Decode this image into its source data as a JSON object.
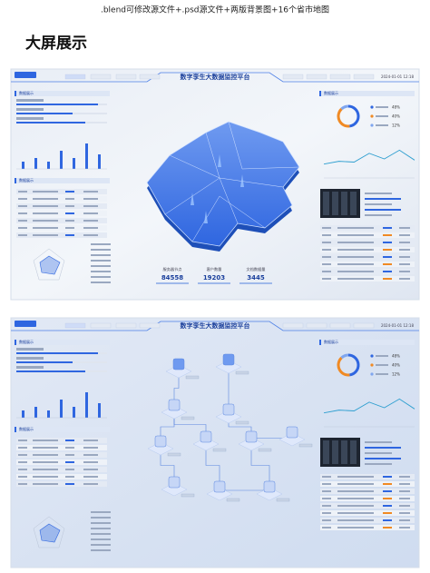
{
  "header": {
    "caption": ".blend可修改源文件+.psd源文件+两版背景图+16个省市地图",
    "title": "大屏展示"
  },
  "screens": [
    {
      "title": "数字孪生大数据监控平台",
      "date": "2024-01-01 12:18",
      "panel_left": "数据展示",
      "panel_left2": "数据展示",
      "panel_right": "数据展示",
      "progress": [
        90,
        62,
        76
      ],
      "bars": [
        2,
        3,
        2,
        5,
        3,
        7,
        4
      ],
      "donut": {
        "values": [
          48,
          40,
          12
        ],
        "value_labels": [
          "48%",
          "40%",
          "12%"
        ]
      },
      "line": [
        35,
        42,
        40,
        62,
        48,
        70,
        45
      ],
      "stats": [
        {
          "label": "服务器节点",
          "value": "84558"
        },
        {
          "label": "客户数量",
          "value": "19203"
        },
        {
          "label": "文档数据量",
          "value": "3445"
        }
      ]
    },
    {
      "title": "数字孪生大数据监控平台",
      "date": "2024-01-01 12:18",
      "panel_left": "数据展示",
      "panel_left2": "数据展示",
      "panel_right": "数据展示",
      "progress": [
        90,
        62,
        76
      ],
      "bars": [
        2,
        3,
        2,
        5,
        3,
        7,
        4
      ],
      "donut": {
        "values": [
          48,
          40,
          12
        ],
        "value_labels": [
          "48%",
          "40%",
          "12%"
        ]
      },
      "line": [
        35,
        42,
        40,
        62,
        48,
        70,
        45
      ]
    }
  ]
}
